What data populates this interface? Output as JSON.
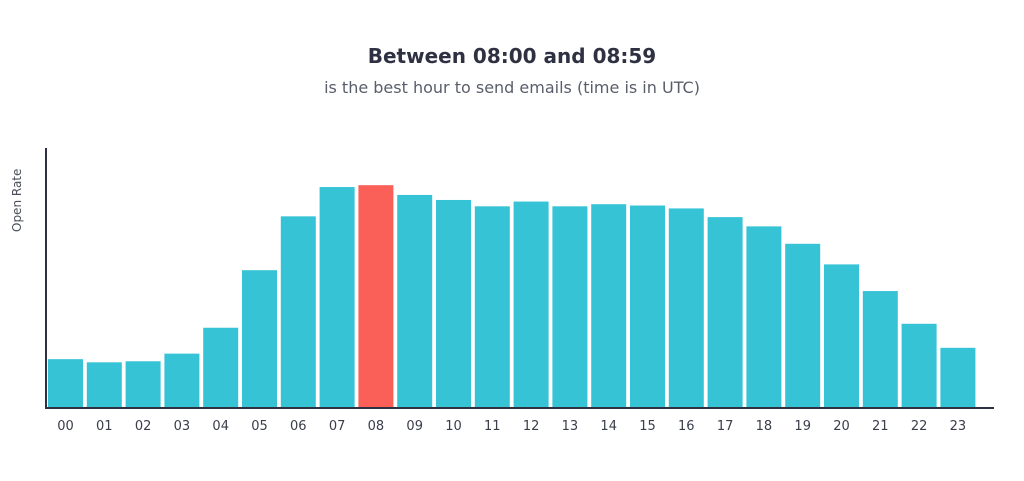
{
  "chart_data": {
    "type": "bar",
    "title": "Between 08:00 and 08:59",
    "subtitle": "is the best hour to send emails (time is in UTC)",
    "xlabel": "",
    "ylabel": "Open Rate",
    "categories": [
      "00",
      "01",
      "02",
      "03",
      "04",
      "05",
      "06",
      "07",
      "08",
      "09",
      "10",
      "11",
      "12",
      "13",
      "14",
      "15",
      "16",
      "17",
      "18",
      "19",
      "20",
      "21",
      "22",
      "23"
    ],
    "values": [
      18.5,
      17.3,
      17.7,
      20.6,
      30.4,
      52.2,
      72.6,
      83.7,
      84.4,
      80.7,
      78.8,
      76.4,
      78.2,
      76.4,
      77.2,
      76.7,
      75.6,
      72.3,
      68.8,
      62.2,
      54.4,
      44.3,
      31.9,
      22.8
    ],
    "ylim": [
      0,
      100
    ],
    "highlight_category": "08",
    "colors": {
      "bar": "#37c3d6",
      "highlight": "#fb6058",
      "axis": "#2d3142"
    },
    "grid": false,
    "legend": "none"
  }
}
